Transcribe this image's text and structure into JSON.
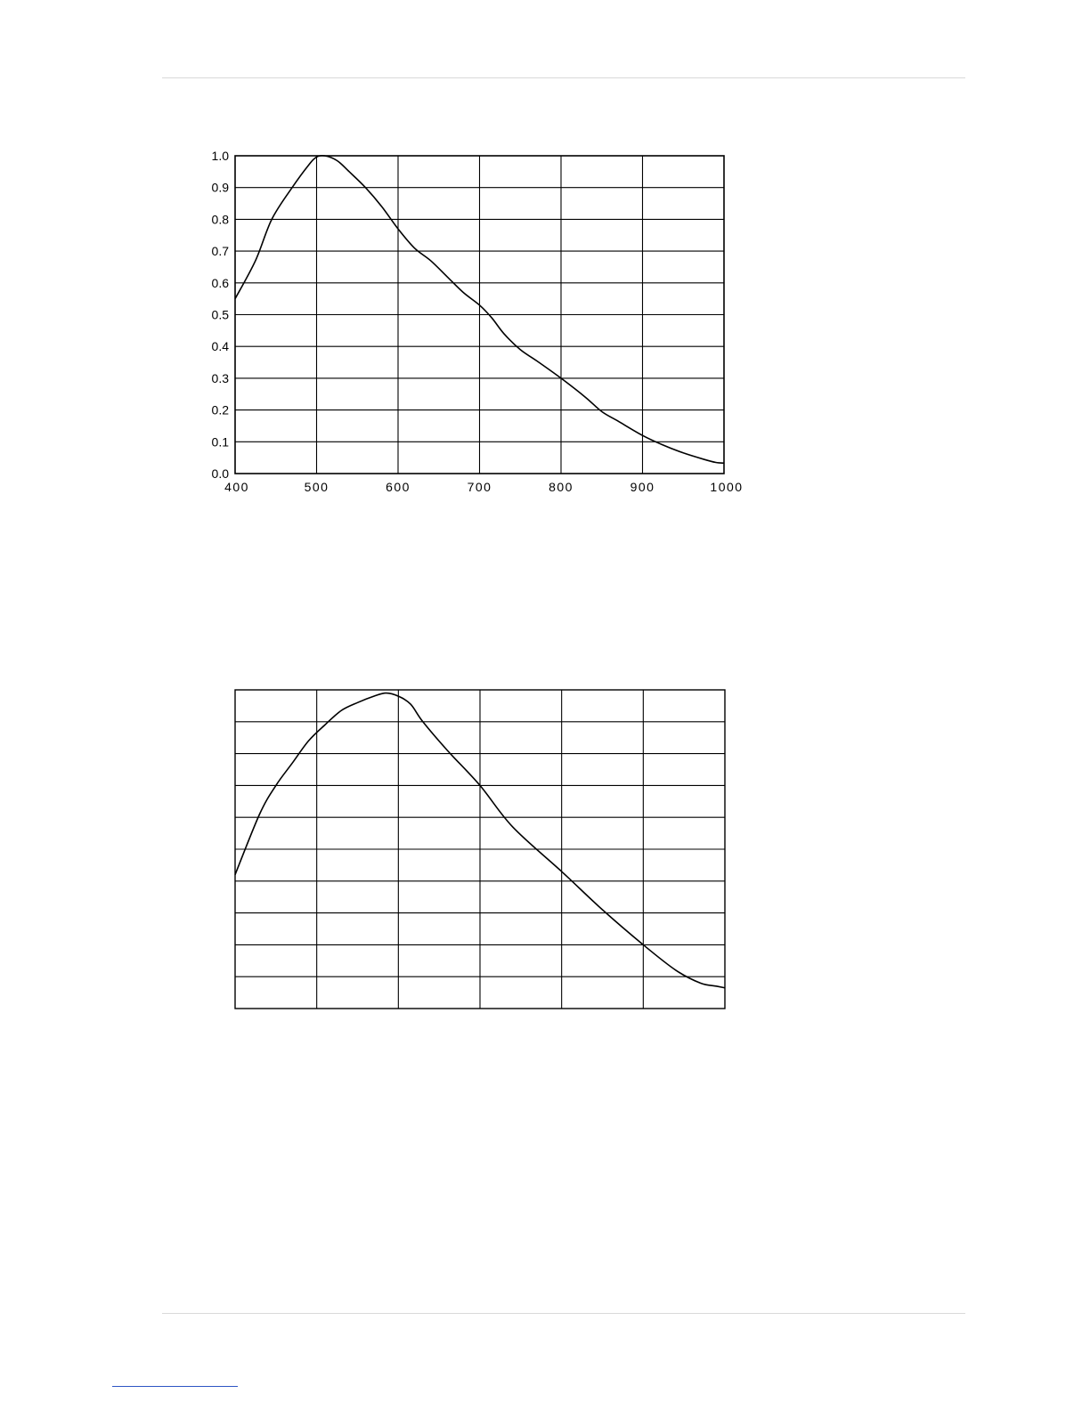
{
  "chart_data": [
    {
      "type": "line",
      "title": "",
      "xlabel": "",
      "ylabel": "",
      "xlim": [
        400,
        1000
      ],
      "ylim": [
        0.0,
        1.0
      ],
      "grid": true,
      "x_ticks": [
        "400",
        "500",
        "600",
        "700",
        "800",
        "900",
        "1000"
      ],
      "y_ticks": [
        "0.0",
        "0.1",
        "0.2",
        "0.3",
        "0.4",
        "0.5",
        "0.6",
        "0.7",
        "0.8",
        "0.9",
        "1.0"
      ],
      "series": [
        {
          "x": [
            400,
            425,
            445,
            470,
            490,
            500,
            510,
            525,
            540,
            560,
            580,
            600,
            620,
            640,
            660,
            680,
            700,
            715,
            730,
            750,
            770,
            800,
            830,
            850,
            870,
            900,
            925,
            950,
            975,
            990,
            1000
          ],
          "y": [
            0.55,
            0.67,
            0.8,
            0.9,
            0.97,
            0.996,
            1.0,
            0.985,
            0.95,
            0.9,
            0.84,
            0.77,
            0.71,
            0.67,
            0.62,
            0.57,
            0.53,
            0.49,
            0.44,
            0.39,
            0.355,
            0.3,
            0.24,
            0.195,
            0.165,
            0.12,
            0.09,
            0.065,
            0.045,
            0.035,
            0.033
          ]
        }
      ]
    },
    {
      "type": "line",
      "title": "",
      "xlabel": "",
      "ylabel": "",
      "xlim": [
        400,
        1000
      ],
      "ylim": [
        0.0,
        1.0
      ],
      "grid": true,
      "x_ticks": [],
      "y_ticks": [],
      "series": [
        {
          "x": [
            400,
            430,
            450,
            470,
            490,
            510,
            530,
            550,
            570,
            585,
            600,
            615,
            630,
            660,
            700,
            740,
            800,
            850,
            900,
            940,
            970,
            990,
            1000
          ],
          "y": [
            0.42,
            0.61,
            0.7,
            0.77,
            0.84,
            0.89,
            0.935,
            0.96,
            0.98,
            0.99,
            0.98,
            0.955,
            0.9,
            0.81,
            0.7,
            0.57,
            0.43,
            0.31,
            0.2,
            0.12,
            0.08,
            0.07,
            0.065
          ]
        }
      ]
    }
  ]
}
